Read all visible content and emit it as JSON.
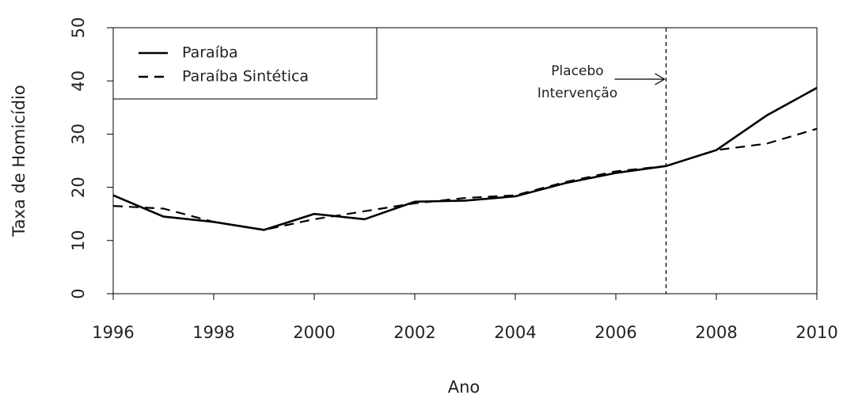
{
  "chart_data": {
    "type": "line",
    "x": [
      1996,
      1997,
      1998,
      1999,
      2000,
      2001,
      2002,
      2003,
      2004,
      2005,
      2006,
      2007,
      2008,
      2009,
      2010
    ],
    "series": [
      {
        "name": "Paraíba",
        "color": "#000000",
        "dash": "solid",
        "values": [
          18.5,
          14.5,
          13.5,
          12,
          15,
          14,
          17.3,
          17.5,
          18.3,
          20.8,
          22.7,
          24,
          27,
          33.5,
          38.7
        ]
      },
      {
        "name": "Paraíba Sintética",
        "color": "#000000",
        "dash": "dashed",
        "values": [
          16.5,
          16,
          13.5,
          12,
          14,
          15.5,
          17,
          18,
          18.5,
          21,
          23,
          24,
          27,
          28.2,
          31
        ]
      }
    ],
    "xlabel": "Ano",
    "ylabel": "Taxa de Homicídio",
    "xlim": [
      1996,
      2010
    ],
    "xticks": [
      1996,
      1998,
      2000,
      2002,
      2004,
      2006,
      2008,
      2010
    ],
    "ylim": [
      0,
      50
    ],
    "yticks": [
      0,
      10,
      20,
      30,
      40,
      50
    ],
    "vline": 2007,
    "annotation": [
      "Placebo",
      "Intervenção"
    ],
    "legend": "top-left"
  }
}
